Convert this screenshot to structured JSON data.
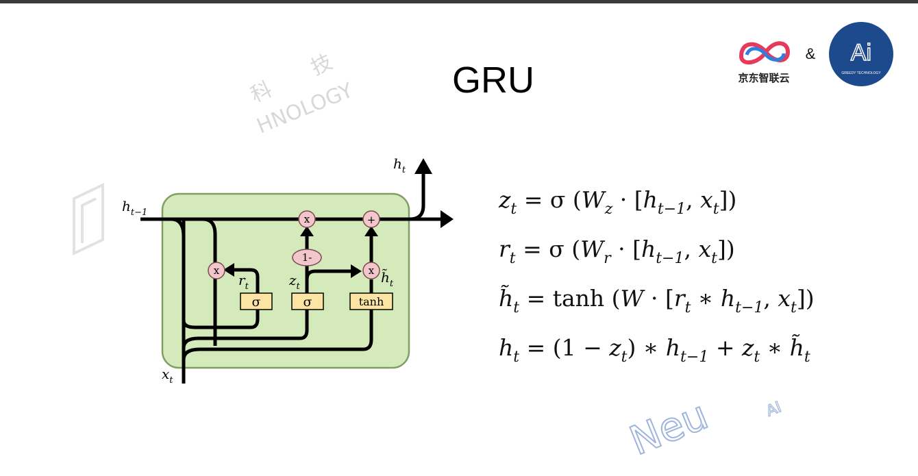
{
  "header": {
    "title": "GRU",
    "ampersand": "&",
    "logo_left_text": "京东智联云",
    "logo_right_text": "Ai",
    "logo_right_subtext": "GREEDY TECHNOLOGY"
  },
  "watermarks": [
    "科",
    "技",
    "HNOLOGY",
    "Neu",
    "AI"
  ],
  "diagram": {
    "labels": {
      "output": [
        "h",
        "t"
      ],
      "previous": [
        "h",
        "t−1"
      ],
      "input": [
        "x",
        "t"
      ],
      "reset": [
        "r",
        "t"
      ],
      "update": [
        "z",
        "t"
      ],
      "candidate": [
        "h̃",
        "t"
      ]
    },
    "gates": [
      "σ",
      "σ",
      "tanh"
    ],
    "operations": [
      "x",
      "x",
      "x",
      "+",
      "1-"
    ]
  },
  "equations": [
    [
      "z",
      "t",
      " = σ (",
      "W",
      "z",
      " · [",
      "h",
      "t−1",
      ", ",
      "x",
      "t",
      "])"
    ],
    [
      "r",
      "t",
      " = σ (",
      "W",
      "r",
      " · [",
      "h",
      "t−1",
      ", ",
      "x",
      "t",
      "])"
    ],
    [
      "h̃",
      "t",
      " = tanh (",
      "W",
      " · [",
      "r",
      "t",
      " ∗ ",
      "h",
      "t−1",
      ", ",
      "x",
      "t",
      "])"
    ],
    [
      "h",
      "t",
      " = (1 − ",
      "z",
      "t",
      ") ∗ ",
      "h",
      "t−1",
      " + ",
      "z",
      "t",
      " ∗ ",
      "h̃",
      "t"
    ]
  ]
}
